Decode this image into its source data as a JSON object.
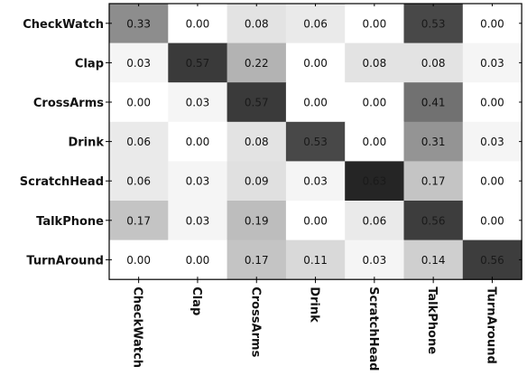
{
  "chart_data": {
    "type": "heatmap",
    "rows": [
      "CheckWatch",
      "Clap",
      "CrossArms",
      "Drink",
      "ScratchHead",
      "TalkPhone",
      "TurnAround"
    ],
    "columns": [
      "CheckWatch",
      "Clap",
      "CrossArms",
      "Drink",
      "ScratchHead",
      "TalkPhone",
      "TurnAround"
    ],
    "values": [
      [
        0.33,
        0.0,
        0.08,
        0.06,
        0.0,
        0.53,
        0.0
      ],
      [
        0.03,
        0.57,
        0.22,
        0.0,
        0.08,
        0.08,
        0.03
      ],
      [
        0.0,
        0.03,
        0.57,
        0.0,
        0.0,
        0.41,
        0.0
      ],
      [
        0.06,
        0.0,
        0.08,
        0.53,
        0.0,
        0.31,
        0.03
      ],
      [
        0.06,
        0.03,
        0.09,
        0.03,
        0.63,
        0.17,
        0.0
      ],
      [
        0.17,
        0.03,
        0.19,
        0.0,
        0.06,
        0.56,
        0.0
      ],
      [
        0.0,
        0.0,
        0.17,
        0.11,
        0.03,
        0.14,
        0.56
      ]
    ],
    "value_labels": [
      [
        "0.33",
        "0.00",
        "0.08",
        "0.06",
        "0.00",
        "0.53",
        "0.00"
      ],
      [
        "0.03",
        "0.57",
        "0.22",
        "0.00",
        "0.08",
        "0.08",
        "0.03"
      ],
      [
        "0.00",
        "0.03",
        "0.57",
        "0.00",
        "0.00",
        "0.41",
        "0.00"
      ],
      [
        "0.06",
        "0.00",
        "0.08",
        "0.53",
        "0.00",
        "0.31",
        "0.03"
      ],
      [
        "0.06",
        "0.03",
        "0.09",
        "0.03",
        "0.63",
        "0.17",
        "0.00"
      ],
      [
        "0.17",
        "0.03",
        "0.19",
        "0.00",
        "0.06",
        "0.56",
        "0.00"
      ],
      [
        "0.00",
        "0.00",
        "0.17",
        "0.11",
        "0.03",
        "0.14",
        "0.56"
      ]
    ],
    "colormap": "grayscale, higher value darker",
    "color_low": "#ffffff",
    "color_high": "#111111",
    "title": "",
    "xlabel": "",
    "ylabel": ""
  }
}
